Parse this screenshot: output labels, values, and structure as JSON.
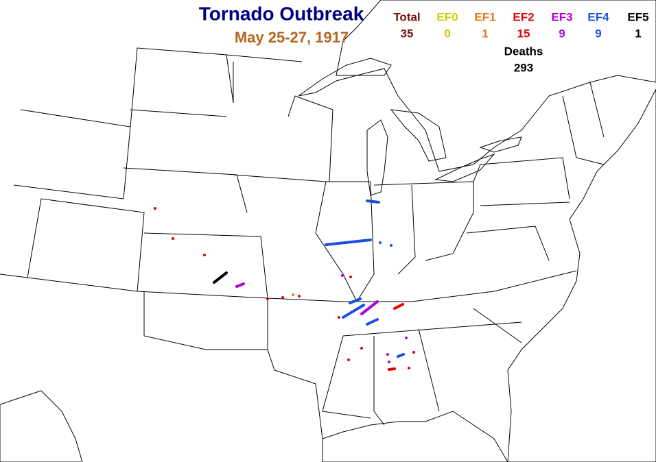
{
  "title": "Tornado Outbreak",
  "subtitle": "May 25-27, 1917",
  "counts": [
    {
      "label": "Total",
      "value": 35,
      "color": "#7a1010"
    },
    {
      "label": "EF0",
      "value": 0,
      "color": "#cccc00"
    },
    {
      "label": "EF1",
      "value": 1,
      "color": "#e8771c"
    },
    {
      "label": "EF2",
      "value": 15,
      "color": "#e00000"
    },
    {
      "label": "EF3",
      "value": 9,
      "color": "#b000e0"
    },
    {
      "label": "EF4",
      "value": 9,
      "color": "#1a4fe0"
    },
    {
      "label": "EF5",
      "value": 1,
      "color": "#000000"
    }
  ],
  "deaths": {
    "label": "Deaths",
    "value": 293
  }
}
